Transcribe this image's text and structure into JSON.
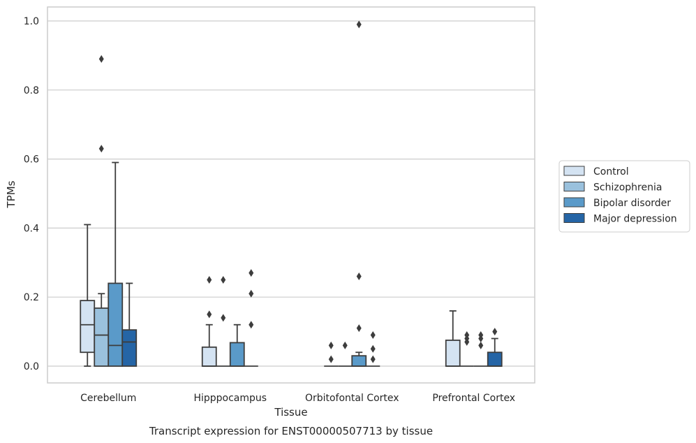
{
  "caption": "Transcript expression for ENST00000507713 by tissue",
  "chart_data": {
    "type": "box",
    "xlabel": "Tissue",
    "ylabel": "TPMs",
    "ylim": [
      -0.05,
      1.04
    ],
    "yticks": [
      "0.0",
      "0.2",
      "0.4",
      "0.6",
      "0.8",
      "1.0"
    ],
    "grid": "horizontal",
    "legend_position": "right",
    "categories": [
      "Cerebellum",
      "Hipppocampus",
      "Orbitofontal Cortex",
      "Prefrontal Cortex"
    ],
    "series": [
      {
        "name": "Control",
        "color": "#d4e3f2",
        "boxes": [
          {
            "whislo": 0.0,
            "q1": 0.04,
            "med": 0.12,
            "q3": 0.19,
            "whishi": 0.41,
            "fliers": []
          },
          {
            "whislo": 0.0,
            "q1": 0.0,
            "med": 0.0,
            "q3": 0.055,
            "whishi": 0.12,
            "fliers": [
              0.15,
              0.25
            ]
          },
          {
            "whislo": 0.0,
            "q1": 0.0,
            "med": 0.0,
            "q3": 0.0,
            "whishi": 0.0,
            "fliers": [
              0.02,
              0.06
            ]
          },
          {
            "whislo": 0.0,
            "q1": 0.0,
            "med": 0.0,
            "q3": 0.075,
            "whishi": 0.16,
            "fliers": []
          }
        ]
      },
      {
        "name": "Schizophrenia",
        "color": "#9ac1dd",
        "boxes": [
          {
            "whislo": 0.0,
            "q1": 0.0,
            "med": 0.09,
            "q3": 0.168,
            "whishi": 0.21,
            "fliers": [
              0.63,
              0.89
            ]
          },
          {
            "whislo": 0.0,
            "q1": 0.0,
            "med": 0.0,
            "q3": 0.0,
            "whishi": 0.0,
            "fliers": [
              0.14,
              0.25
            ]
          },
          {
            "whislo": 0.0,
            "q1": 0.0,
            "med": 0.0,
            "q3": 0.0,
            "whishi": 0.0,
            "fliers": [
              0.06
            ]
          },
          {
            "whislo": 0.0,
            "q1": 0.0,
            "med": 0.0,
            "q3": 0.0,
            "whishi": 0.0,
            "fliers": [
              0.07,
              0.08,
              0.09
            ]
          }
        ]
      },
      {
        "name": "Bipolar disorder",
        "color": "#5a9ac9",
        "boxes": [
          {
            "whislo": 0.0,
            "q1": 0.0,
            "med": 0.06,
            "q3": 0.24,
            "whishi": 0.59,
            "fliers": []
          },
          {
            "whislo": 0.0,
            "q1": 0.0,
            "med": 0.0,
            "q3": 0.068,
            "whishi": 0.12,
            "fliers": []
          },
          {
            "whislo": 0.0,
            "q1": 0.0,
            "med": 0.0,
            "q3": 0.03,
            "whishi": 0.04,
            "fliers": [
              0.11,
              0.26,
              0.99
            ]
          },
          {
            "whislo": 0.0,
            "q1": 0.0,
            "med": 0.0,
            "q3": 0.0,
            "whishi": 0.0,
            "fliers": [
              0.06,
              0.08,
              0.09
            ]
          }
        ]
      },
      {
        "name": "Major depression",
        "color": "#2565a6",
        "boxes": [
          {
            "whislo": 0.0,
            "q1": 0.0,
            "med": 0.07,
            "q3": 0.105,
            "whishi": 0.24,
            "fliers": []
          },
          {
            "whislo": 0.0,
            "q1": 0.0,
            "med": 0.0,
            "q3": 0.0,
            "whishi": 0.0,
            "fliers": [
              0.12,
              0.21,
              0.27
            ]
          },
          {
            "whislo": 0.0,
            "q1": 0.0,
            "med": 0.0,
            "q3": 0.0,
            "whishi": 0.0,
            "fliers": [
              0.02,
              0.05,
              0.09
            ]
          },
          {
            "whislo": 0.0,
            "q1": 0.0,
            "med": 0.0,
            "q3": 0.04,
            "whishi": 0.08,
            "fliers": [
              0.1
            ]
          }
        ]
      }
    ]
  }
}
